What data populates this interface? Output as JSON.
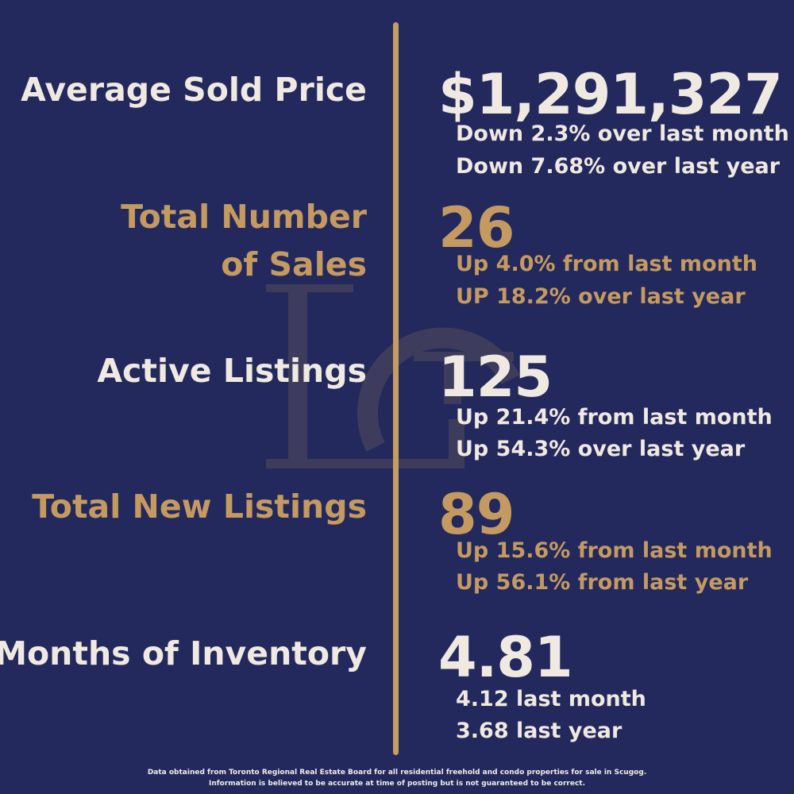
{
  "colors": {
    "background": "#23295c",
    "accent_gold": "#c59d62",
    "text_light": "#efe9e1"
  },
  "watermark": {
    "icon": "lc-monogram-logo"
  },
  "metrics": [
    {
      "label": "Average Sold Price",
      "value": "$1,291,327",
      "details": [
        "Down 2.3% over last month",
        "Down 7.68% over last year"
      ],
      "color": "white"
    },
    {
      "label_lines": [
        "Total Number",
        "of Sales"
      ],
      "value": "26",
      "details": [
        "Up 4.0% from last month",
        "UP 18.2% over last year"
      ],
      "color": "gold"
    },
    {
      "label": "Active Listings",
      "value": "125",
      "details": [
        "Up 21.4% from last month",
        "Up 54.3% over last year"
      ],
      "color": "white"
    },
    {
      "label": "Total New Listings",
      "value": "89",
      "details": [
        "Up 15.6% from last month",
        "Up 56.1% from last year"
      ],
      "color": "gold"
    },
    {
      "label": "Months of Inventory",
      "value": "4.81",
      "details": [
        "4.12 last month",
        "3.68 last year"
      ],
      "color": "white"
    }
  ],
  "footer": {
    "line1": "Data obtained from Toronto Regional Real Estate Board for all residential freehold and condo properties for sale in Scugog.",
    "line2": "Information is believed to be accurate at time of posting but is not guaranteed to be correct."
  }
}
